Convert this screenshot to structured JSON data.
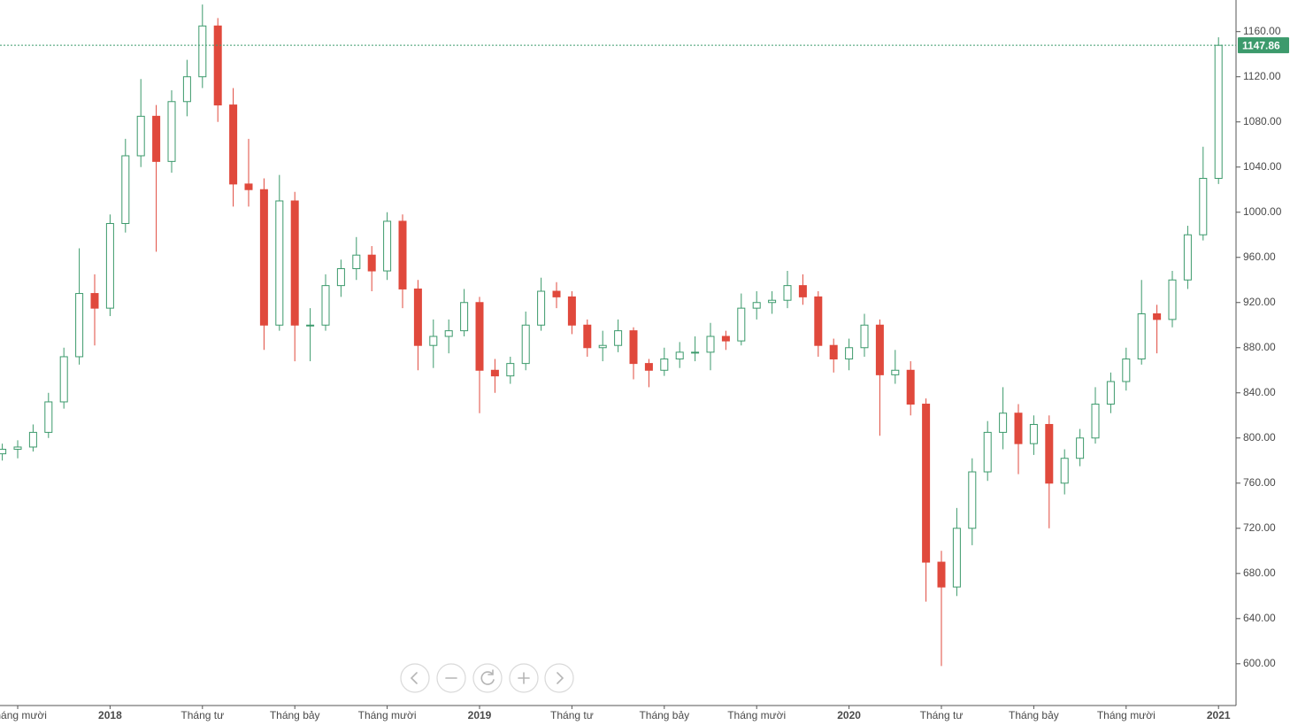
{
  "chart_data": {
    "type": "candlestick",
    "categories": [
      null,
      "Tháng mười",
      null,
      null,
      null,
      null,
      null,
      "2018",
      null,
      null,
      null,
      null,
      null,
      "Tháng tư",
      null,
      null,
      null,
      null,
      null,
      "Tháng bảy",
      null,
      null,
      null,
      null,
      null,
      "Tháng mười",
      null,
      null,
      null,
      null,
      null,
      "2019",
      null,
      null,
      null,
      null,
      null,
      "Tháng tư",
      null,
      null,
      null,
      null,
      null,
      "Tháng bảy",
      null,
      null,
      null,
      null,
      null,
      "Tháng mười",
      null,
      null,
      null,
      null,
      null,
      "2020",
      null,
      null,
      null,
      null,
      null,
      "Tháng tư",
      null,
      null,
      null,
      null,
      null,
      "Tháng bảy",
      null,
      null,
      null,
      null,
      null,
      "Tháng mười",
      null,
      null,
      null,
      null,
      null,
      "2021"
    ],
    "series": [
      {
        "open": [
          786,
          790,
          792,
          805,
          832,
          872,
          928,
          915,
          990,
          1050,
          1085,
          1045,
          1098,
          1120,
          1165,
          1095,
          1025,
          1020,
          900,
          1010,
          900,
          900,
          935,
          950,
          962,
          948,
          992,
          932,
          882,
          890,
          895,
          920,
          860,
          855,
          866,
          900,
          930,
          925,
          900,
          880,
          882,
          895,
          866,
          860,
          870,
          876,
          876,
          890,
          886,
          915,
          920,
          922,
          935,
          925,
          882,
          870,
          880,
          900,
          856,
          860,
          830,
          690,
          668,
          720,
          770,
          805,
          822,
          795,
          812,
          760,
          782,
          800,
          830,
          850,
          870,
          910,
          905,
          940,
          980,
          1030
        ],
        "high": [
          795,
          798,
          812,
          840,
          880,
          968,
          945,
          998,
          1065,
          1118,
          1095,
          1108,
          1135,
          1184,
          1172,
          1110,
          1065,
          1030,
          1033,
          1018,
          915,
          945,
          958,
          978,
          970,
          1000,
          998,
          940,
          905,
          905,
          932,
          925,
          870,
          872,
          912,
          942,
          938,
          930,
          905,
          895,
          905,
          898,
          870,
          880,
          885,
          890,
          902,
          895,
          928,
          930,
          930,
          948,
          945,
          930,
          888,
          888,
          910,
          905,
          878,
          868,
          835,
          700,
          738,
          782,
          815,
          845,
          830,
          820,
          820,
          790,
          808,
          845,
          858,
          880,
          940,
          918,
          948,
          988,
          1058,
          1155
        ],
        "low": [
          780,
          782,
          788,
          800,
          826,
          865,
          882,
          908,
          982,
          1040,
          965,
          1035,
          1085,
          1110,
          1080,
          1005,
          1005,
          878,
          895,
          868,
          868,
          895,
          925,
          940,
          930,
          940,
          915,
          860,
          862,
          875,
          890,
          822,
          840,
          848,
          860,
          895,
          915,
          892,
          872,
          868,
          876,
          852,
          845,
          855,
          862,
          868,
          860,
          878,
          882,
          905,
          910,
          915,
          918,
          872,
          858,
          860,
          872,
          802,
          848,
          820,
          655,
          598,
          660,
          705,
          762,
          790,
          768,
          785,
          720,
          750,
          775,
          795,
          822,
          842,
          865,
          875,
          898,
          932,
          975,
          1025
        ],
        "close": [
          790,
          792,
          805,
          832,
          872,
          928,
          915,
          990,
          1050,
          1085,
          1045,
          1098,
          1120,
          1165,
          1095,
          1025,
          1020,
          900,
          1010,
          900,
          900,
          935,
          950,
          962,
          948,
          992,
          932,
          882,
          890,
          895,
          920,
          860,
          855,
          866,
          900,
          930,
          925,
          900,
          880,
          882,
          895,
          866,
          860,
          870,
          876,
          876,
          890,
          886,
          915,
          920,
          922,
          935,
          925,
          882,
          870,
          880,
          900,
          856,
          860,
          830,
          690,
          668,
          720,
          770,
          805,
          822,
          795,
          812,
          760,
          782,
          800,
          830,
          850,
          870,
          910,
          905,
          940,
          980,
          1030,
          1147.86
        ]
      }
    ],
    "up_color": "#3c9a6c",
    "down_color": "#e0493c",
    "ylim": [
      563,
      1188
    ],
    "yticks": [
      {
        "value": 600,
        "label": "600.00"
      },
      {
        "value": 640,
        "label": "640.00"
      },
      {
        "value": 680,
        "label": "680.00"
      },
      {
        "value": 720,
        "label": "720.00"
      },
      {
        "value": 760,
        "label": "760.00"
      },
      {
        "value": 800,
        "label": "800.00"
      },
      {
        "value": 840,
        "label": "840.00"
      },
      {
        "value": 880,
        "label": "880.00"
      },
      {
        "value": 920,
        "label": "920.00"
      },
      {
        "value": 960,
        "label": "960.00"
      },
      {
        "value": 1000,
        "label": "1000.00"
      },
      {
        "value": 1040,
        "label": "1040.00"
      },
      {
        "value": 1080,
        "label": "1080.00"
      },
      {
        "value": 1120,
        "label": "1120.00"
      },
      {
        "value": 1160,
        "label": "1160.00"
      }
    ],
    "grid": false
  }
}
